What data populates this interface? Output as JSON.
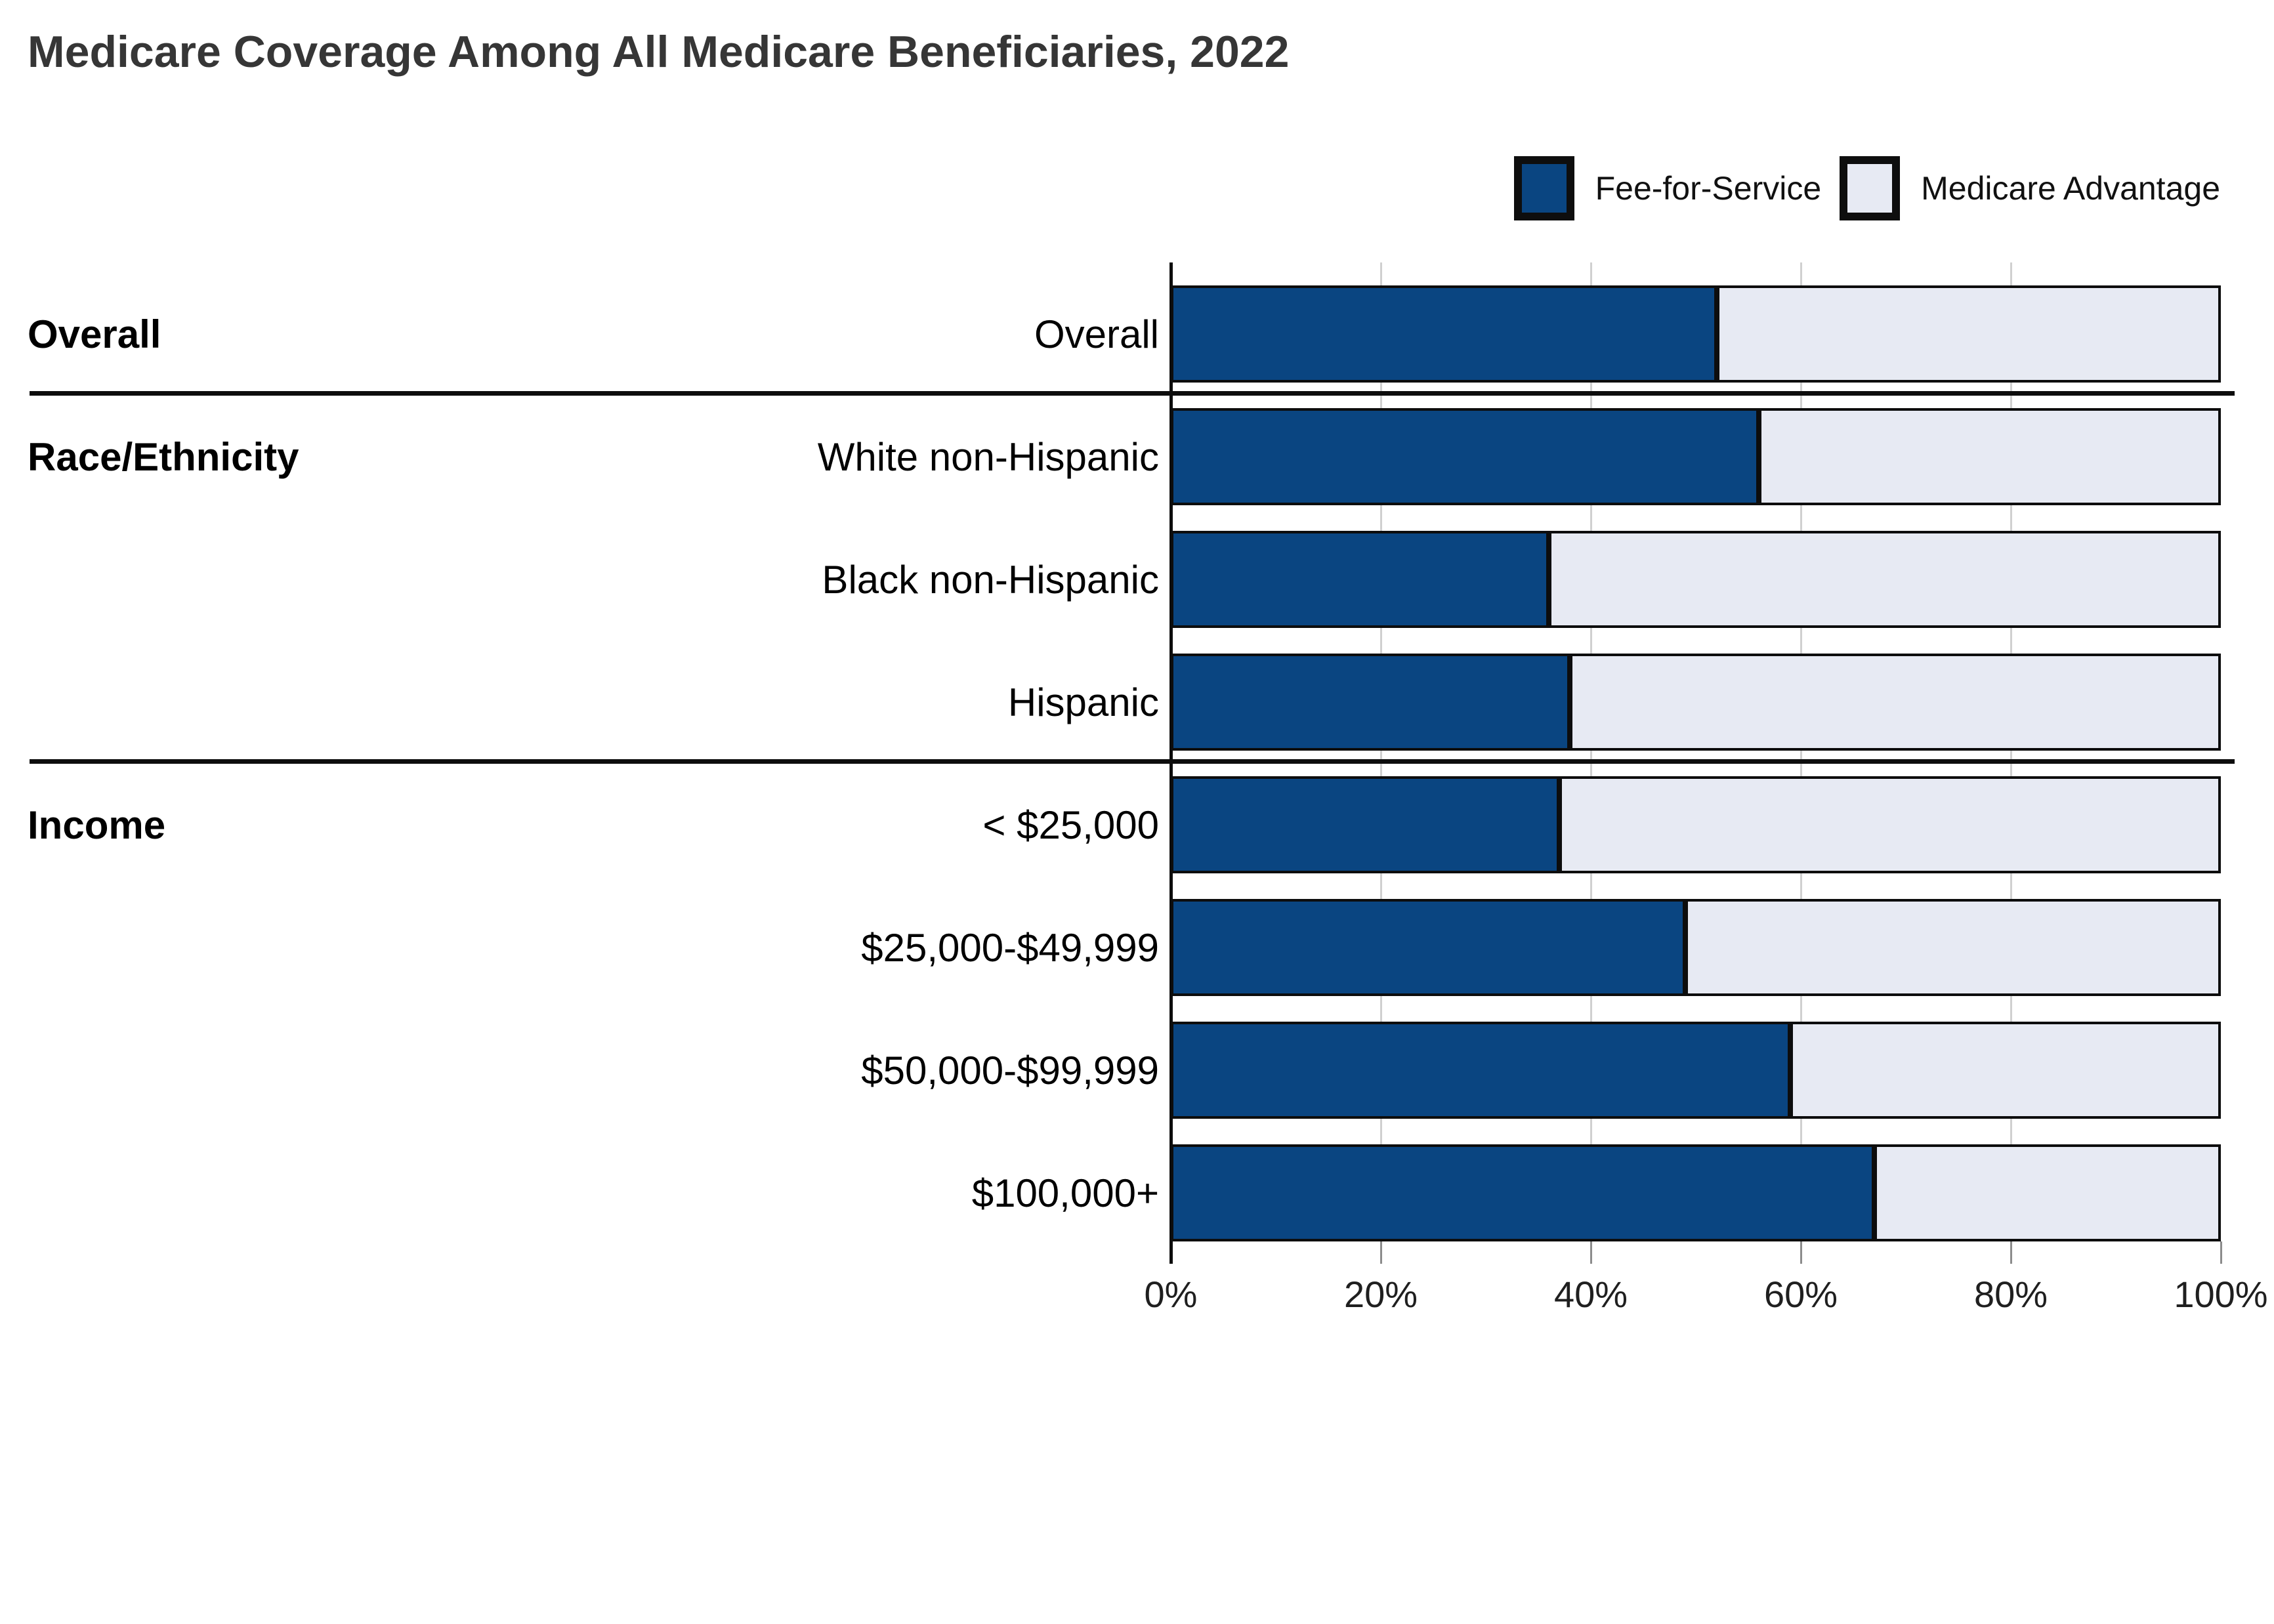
{
  "chart_data": {
    "type": "bar",
    "orientation": "horizontal",
    "stacked": true,
    "title": "Medicare Coverage Among All Medicare Beneficiaries, 2022",
    "categories": [
      "Overall",
      "White non-Hispanic",
      "Black non-Hispanic",
      "Hispanic",
      "< $25,000",
      "$25,000-$49,999",
      "$50,000-$99,999",
      "$100,000+"
    ],
    "groups": [
      {
        "label": "Overall",
        "first_row": 0,
        "rows": [
          0
        ]
      },
      {
        "label": "Race/Ethnicity",
        "first_row": 1,
        "rows": [
          1,
          2,
          3
        ]
      },
      {
        "label": "Income",
        "first_row": 4,
        "rows": [
          4,
          5,
          6,
          7
        ]
      }
    ],
    "separators_after_rows": [
      0,
      3
    ],
    "series": [
      {
        "name": "Fee-for-Service",
        "color": "#0a4581",
        "values": [
          52,
          56,
          36,
          38,
          37,
          49,
          59,
          67
        ]
      },
      {
        "name": "Medicare Advantage",
        "color": "#e7eaf3",
        "values": [
          48,
          44,
          64,
          62,
          63,
          51,
          41,
          33
        ]
      }
    ],
    "xlim": [
      0,
      100
    ],
    "x_tick_labels": [
      "0%",
      "20%",
      "40%",
      "60%",
      "80%",
      "100%"
    ],
    "x_tick_values": [
      0,
      20,
      40,
      60,
      80,
      100
    ],
    "grid": true,
    "legend_position": "top-right",
    "colors": {
      "bar_border": "#0d0d0d",
      "gridline": "#d0d0d0",
      "title_text": "#363636",
      "label_text": "#000000"
    }
  }
}
